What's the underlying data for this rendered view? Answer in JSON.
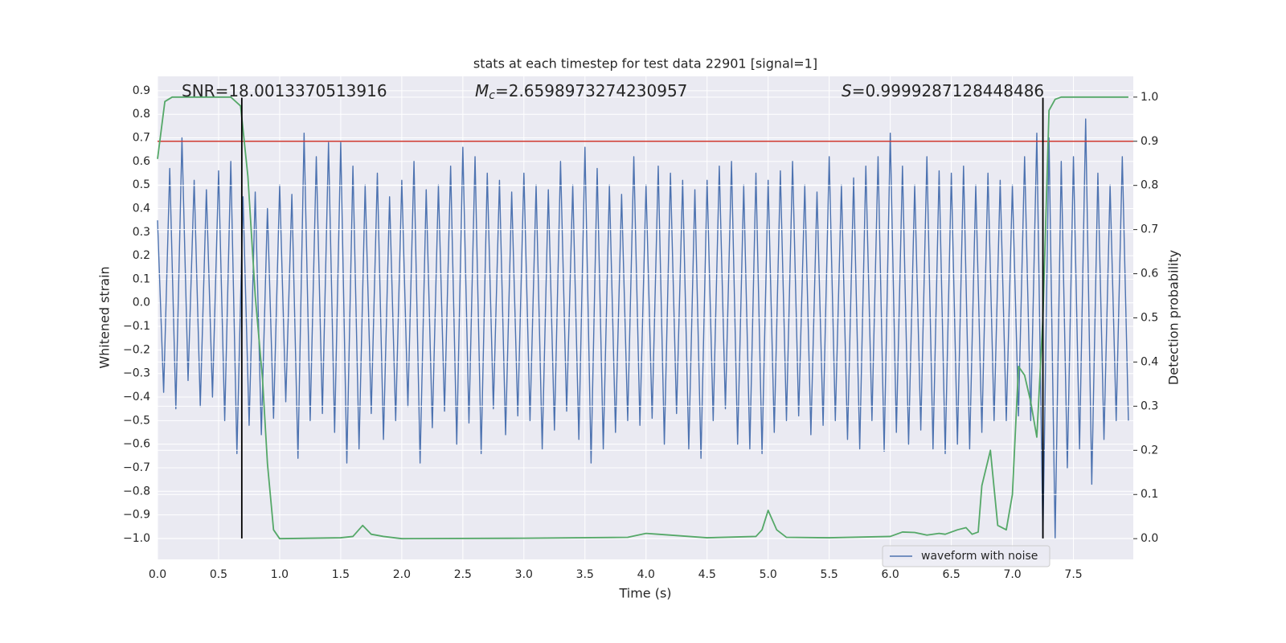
{
  "chart_data": {
    "type": "line",
    "title": "stats at each timestep for test data 22901 [signal=1]",
    "x_label": "Time (s)",
    "y_label": "Whitened strain",
    "y2_label": "Detection probability",
    "xlim": [
      0,
      7.99
    ],
    "ylim": [
      -1.089,
      0.961
    ],
    "y2lim": [
      -0.047,
      1.047
    ],
    "xticks": [
      {
        "value": 0,
        "label": "0.0"
      },
      0.5,
      {
        "value": 1,
        "label": "1.0"
      },
      1.5,
      {
        "value": 2,
        "label": "2.0"
      },
      2.5,
      {
        "value": 3,
        "label": "3.0"
      },
      3.5,
      {
        "value": 4,
        "label": "4.0"
      },
      4.5,
      {
        "value": 5,
        "label": "5.0"
      },
      5.5,
      {
        "value": 6,
        "label": "6.0"
      },
      6.5,
      {
        "value": 7,
        "label": "7.0"
      },
      7.5
    ],
    "yticks": [
      0.9,
      0.8,
      0.7,
      0.6,
      0.5,
      0.4,
      0.3,
      0.2,
      0.1,
      {
        "value": 0,
        "label": "0.0"
      },
      {
        "value": -0.1,
        "label": "−0.1"
      },
      {
        "value": -0.2,
        "label": "−0.2"
      },
      {
        "value": -0.3,
        "label": "−0.3"
      },
      {
        "value": -0.4,
        "label": "−0.4"
      },
      {
        "value": -0.5,
        "label": "−0.5"
      },
      {
        "value": -0.6,
        "label": "−0.6"
      },
      {
        "value": -0.7,
        "label": "−0.7"
      },
      {
        "value": -0.8,
        "label": "−0.8"
      },
      {
        "value": -0.9,
        "label": "−0.9"
      },
      {
        "value": -1,
        "label": "−1.0"
      }
    ],
    "y2ticks": [
      {
        "value": 0,
        "label": "0.0"
      },
      0.1,
      0.2,
      0.3,
      0.4,
      0.5,
      0.6,
      0.7,
      0.8,
      0.9,
      {
        "value": 1,
        "label": "1.0"
      }
    ],
    "grid": true,
    "legend": "lower right",
    "series": [
      {
        "name": "waveform with noise",
        "color": "#4c72b0",
        "x": [
          0,
          0.05,
          0.1,
          0.15,
          0.2,
          0.25,
          0.3,
          0.35,
          0.4,
          0.45,
          0.5,
          0.55,
          0.6,
          0.65,
          0.7,
          0.75,
          0.8,
          0.85,
          0.9,
          0.95,
          1,
          1.05,
          1.1,
          1.15,
          1.2,
          1.25,
          1.3,
          1.35,
          1.4,
          1.45,
          1.5,
          1.55,
          1.6,
          1.65,
          1.7,
          1.75,
          1.8,
          1.85,
          1.9,
          1.95,
          2,
          2.05,
          2.1,
          2.15,
          2.2,
          2.25,
          2.3,
          2.35,
          2.4,
          2.45,
          2.5,
          2.55,
          2.6,
          2.65,
          2.7,
          2.75,
          2.8,
          2.85,
          2.9,
          2.95,
          3,
          3.05,
          3.1,
          3.15,
          3.2,
          3.25,
          3.3,
          3.35,
          3.4,
          3.45,
          3.5,
          3.55,
          3.6,
          3.65,
          3.7,
          3.75,
          3.8,
          3.85,
          3.9,
          3.95,
          4,
          4.05,
          4.1,
          4.15,
          4.2,
          4.25,
          4.3,
          4.35,
          4.4,
          4.45,
          4.5,
          4.55,
          4.6,
          4.65,
          4.7,
          4.75,
          4.8,
          4.85,
          4.9,
          4.95,
          5,
          5.05,
          5.1,
          5.15,
          5.2,
          5.25,
          5.3,
          5.35,
          5.4,
          5.45,
          5.5,
          5.55,
          5.6,
          5.65,
          5.7,
          5.75,
          5.8,
          5.85,
          5.9,
          5.95,
          6,
          6.05,
          6.1,
          6.15,
          6.2,
          6.25,
          6.3,
          6.35,
          6.4,
          6.45,
          6.5,
          6.55,
          6.6,
          6.65,
          6.7,
          6.75,
          6.8,
          6.85,
          6.9,
          6.95,
          7,
          7.05,
          7.1,
          7.15,
          7.2,
          7.25,
          7.3,
          7.35,
          7.4,
          7.45,
          7.5,
          7.55,
          7.6,
          7.65,
          7.7,
          7.75,
          7.8,
          7.85,
          7.9,
          7.95
        ],
        "values": [
          0.35,
          -0.38,
          0.57,
          -0.45,
          0.7,
          -0.33,
          0.52,
          -0.44,
          0.48,
          -0.4,
          0.56,
          -0.5,
          0.6,
          -0.64,
          0.45,
          -0.52,
          0.47,
          -0.56,
          0.4,
          -0.49,
          0.5,
          -0.42,
          0.46,
          -0.66,
          0.72,
          -0.5,
          0.62,
          -0.47,
          0.68,
          -0.55,
          0.68,
          -0.68,
          0.58,
          -0.62,
          0.5,
          -0.47,
          0.55,
          -0.58,
          0.45,
          -0.5,
          0.52,
          -0.44,
          0.6,
          -0.68,
          0.48,
          -0.53,
          0.5,
          -0.46,
          0.58,
          -0.6,
          0.66,
          -0.51,
          0.62,
          -0.64,
          0.55,
          -0.45,
          0.52,
          -0.56,
          0.47,
          -0.48,
          0.55,
          -0.5,
          0.5,
          -0.62,
          0.48,
          -0.54,
          0.6,
          -0.46,
          0.5,
          -0.58,
          0.66,
          -0.68,
          0.57,
          -0.62,
          0.5,
          -0.55,
          0.46,
          -0.5,
          0.62,
          -0.52,
          0.5,
          -0.49,
          0.58,
          -0.6,
          0.55,
          -0.47,
          0.52,
          -0.62,
          0.48,
          -0.66,
          0.52,
          -0.5,
          0.58,
          -0.45,
          0.6,
          -0.6,
          0.5,
          -0.62,
          0.55,
          -0.64,
          0.52,
          -0.55,
          0.56,
          -0.5,
          0.6,
          -0.48,
          0.5,
          -0.56,
          0.47,
          -0.52,
          0.62,
          -0.5,
          0.5,
          -0.58,
          0.53,
          -0.62,
          0.58,
          -0.5,
          0.62,
          -0.63,
          0.72,
          -0.55,
          0.58,
          -0.6,
          0.5,
          -0.54,
          0.62,
          -0.62,
          0.56,
          -0.64,
          0.55,
          -0.6,
          0.58,
          -0.62,
          0.5,
          -0.55,
          0.55,
          -0.5,
          0.52,
          -0.5,
          0.5,
          -0.48,
          0.62,
          -0.5,
          0.72,
          -1.0,
          0.7,
          -1.0,
          0.6,
          -0.7,
          0.62,
          -0.62,
          0.78,
          -0.77,
          0.55,
          -0.58,
          0.5,
          -0.5,
          0.62,
          -0.5
        ]
      },
      {
        "color": "#55a868",
        "axis": "y2",
        "x": [
          0,
          0.06,
          0.12,
          0.6,
          0.68,
          0.74,
          0.8,
          0.86,
          0.9,
          0.95,
          1,
          1.5,
          1.6,
          1.68,
          1.75,
          1.85,
          2,
          3,
          3.85,
          4,
          4.1,
          4.5,
          4.9,
          4.95,
          5,
          5.07,
          5.15,
          5.5,
          6,
          6.1,
          6.2,
          6.3,
          6.4,
          6.45,
          6.55,
          6.62,
          6.67,
          6.72,
          6.75,
          6.82,
          6.88,
          6.95,
          7,
          7.05,
          7.1,
          7.15,
          7.2,
          7.25,
          7.3,
          7.35,
          7.4,
          7.95
        ],
        "values": [
          0.86,
          0.99,
          1,
          1,
          0.98,
          0.82,
          0.55,
          0.36,
          0.17,
          0.02,
          0,
          0.002,
          0.005,
          0.03,
          0.01,
          0.005,
          0,
          0.001,
          0.003,
          0.012,
          0.01,
          0.002,
          0.005,
          0.02,
          0.064,
          0.02,
          0.003,
          0.002,
          0.005,
          0.015,
          0.014,
          0.008,
          0.012,
          0.01,
          0.02,
          0.025,
          0.01,
          0.015,
          0.12,
          0.2,
          0.03,
          0.02,
          0.1,
          0.39,
          0.37,
          0.31,
          0.23,
          0.5,
          0.97,
          0.995,
          1,
          1
        ]
      }
    ],
    "hline": {
      "value": 0.9,
      "axis": "y2",
      "color": "#d03a30"
    },
    "vlines": {
      "x": [
        0.69,
        7.25
      ],
      "ymin": -1.0,
      "ymax": 0.87,
      "color": "#000000"
    },
    "annotations": [
      {
        "symbol": "SNR",
        "value_text": "=18.0013370513916",
        "italic": false
      },
      {
        "symbol": "M",
        "subscript": "c",
        "value_text": "=2.6598973274230957",
        "italic": true
      },
      {
        "symbol": "S",
        "value_text": "=0.9999287128448486",
        "italic": true
      }
    ]
  }
}
